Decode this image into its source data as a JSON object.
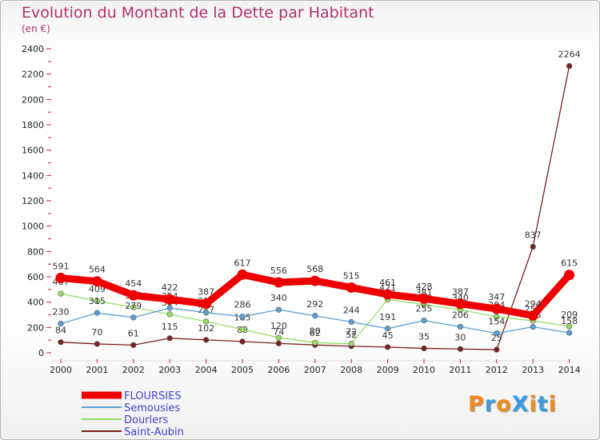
{
  "chart_data": {
    "type": "line",
    "title": "Evolution du Montant de la Dette par Habitant",
    "subtitle": "(en €)",
    "xlabel": "",
    "ylabel": "",
    "ylim": [
      0,
      2400
    ],
    "yticks": [
      0,
      200,
      400,
      600,
      800,
      1000,
      1200,
      1400,
      1600,
      1800,
      2000,
      2200,
      2400
    ],
    "categories": [
      "2000",
      "2001",
      "2002",
      "2003",
      "2004",
      "2005",
      "2006",
      "2007",
      "2008",
      "2009",
      "2010",
      "2011",
      "2012",
      "2013",
      "2014"
    ],
    "series": [
      {
        "name": "Saint-Aubin",
        "color": "#7a2020",
        "values": [
          84,
          70,
          61,
          115,
          102,
          89,
          74,
          62,
          52,
          45,
          35,
          30,
          25,
          837,
          2264
        ]
      },
      {
        "name": "Dourlers",
        "color": "#99dd66",
        "values": [
          467,
          409,
          359,
          304,
          247,
          185,
          120,
          80,
          72,
          421,
          381,
          340,
          284,
          253,
          209
        ]
      },
      {
        "name": "Semousies",
        "color": "#5aa0d6",
        "values": [
          230,
          315,
          279,
          354,
          317,
          286,
          340,
          292,
          244,
          191,
          255,
          206,
          154,
          205,
          158
        ]
      },
      {
        "name": "FLOURSIES",
        "color": "#ee0000",
        "values": [
          591,
          564,
          454,
          422,
          387,
          617,
          556,
          568,
          515,
          461,
          428,
          387,
          347,
          294,
          615
        ]
      }
    ],
    "legend": [
      "FLOURSIES",
      "Semousies",
      "Dourlers",
      "Saint-Aubin"
    ],
    "legend_position": "bottom-left",
    "grid": false
  },
  "logo_text": "ProXiti"
}
